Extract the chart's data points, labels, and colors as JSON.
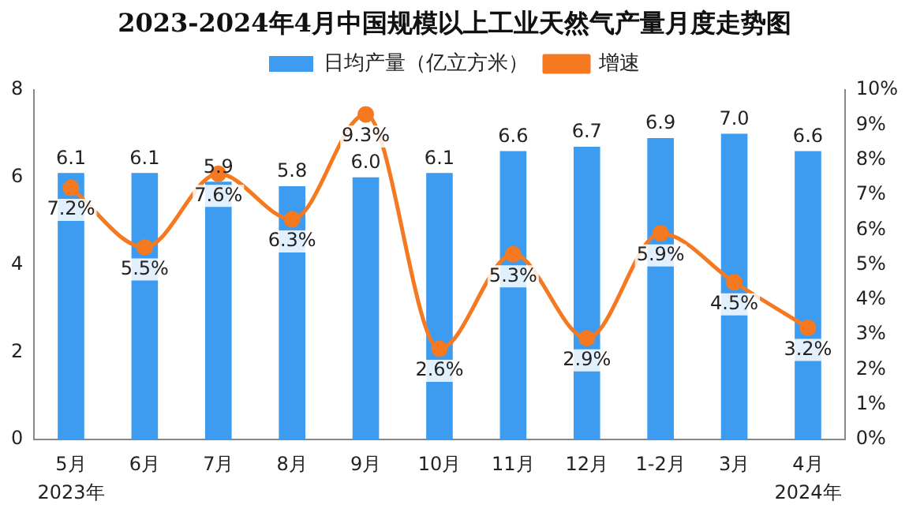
{
  "chart_data": {
    "type": "bar",
    "title": "2023-2024年4月中国规模以上工业天然气产量月度走势图",
    "categories": [
      "5月",
      "6月",
      "7月",
      "8月",
      "9月",
      "10月",
      "11月",
      "12月",
      "1-2月",
      "3月",
      "4月"
    ],
    "series": [
      {
        "name": "日均产量（亿立方米）",
        "color": "#3d9bf0",
        "values": [
          6.1,
          6.1,
          5.9,
          5.8,
          6.0,
          6.1,
          6.6,
          6.7,
          6.9,
          7.0,
          6.6
        ],
        "value_labels": [
          "6.1",
          "6.1",
          "5.9",
          "5.8",
          "6.0",
          "6.1",
          "6.6",
          "6.7",
          "6.9",
          "7.0",
          "6.6"
        ]
      },
      {
        "name": "增速",
        "type": "line",
        "axis": "y2",
        "color": "#f47920",
        "values": [
          7.2,
          5.5,
          7.6,
          6.3,
          9.3,
          2.6,
          5.3,
          2.9,
          5.9,
          4.5,
          3.2
        ],
        "value_labels": [
          "7.2%",
          "5.5%",
          "7.6%",
          "6.3%",
          "9.3%",
          "2.6%",
          "5.3%",
          "2.9%",
          "5.9%",
          "4.5%",
          "3.2%"
        ]
      }
    ],
    "ylim": [
      0,
      8
    ],
    "yticks": [
      0,
      2,
      4,
      6,
      8
    ],
    "y2lim": [
      0,
      10
    ],
    "y2ticks": [
      {
        "value": 0,
        "label": "0%"
      },
      {
        "value": 1,
        "label": "1%"
      },
      {
        "value": 2,
        "label": "2%"
      },
      {
        "value": 3,
        "label": "3%"
      },
      {
        "value": 4,
        "label": "4%"
      },
      {
        "value": 5,
        "label": "5%"
      },
      {
        "value": 6,
        "label": "6%"
      },
      {
        "value": 7,
        "label": "7%"
      },
      {
        "value": 8,
        "label": "8%"
      },
      {
        "value": 9,
        "label": "9%"
      },
      {
        "value": 10,
        "label": "10%"
      }
    ],
    "annotations": [
      "2023年",
      "2024年"
    ],
    "legend": "top",
    "grid": false,
    "marker": "circle",
    "line_style": "solid"
  }
}
